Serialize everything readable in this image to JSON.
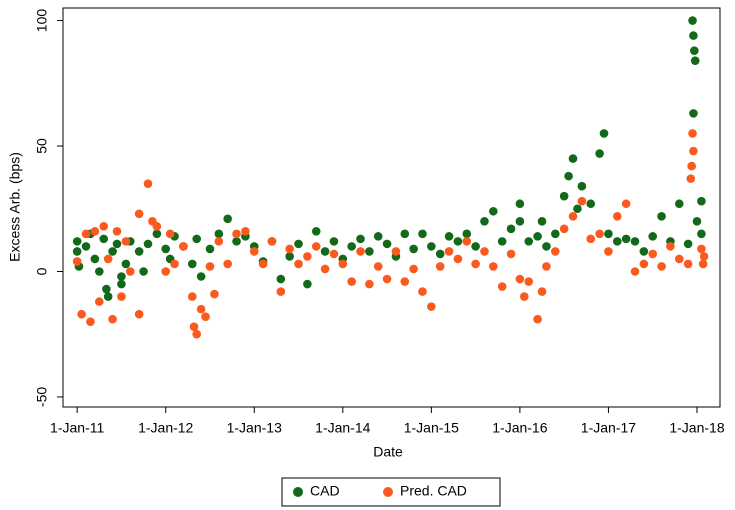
{
  "chart_data": {
    "type": "scatter",
    "x_label": "Date",
    "y_label": "Excess Arb. (bps)",
    "xlim": [
      2010.84,
      2018.26
    ],
    "ylim": [
      -54,
      105
    ],
    "xticks": [
      {
        "value": 2011,
        "label": "1-Jan-11"
      },
      {
        "value": 2012,
        "label": "1-Jan-12"
      },
      {
        "value": 2013,
        "label": "1-Jan-13"
      },
      {
        "value": 2014,
        "label": "1-Jan-14"
      },
      {
        "value": 2015,
        "label": "1-Jan-15"
      },
      {
        "value": 2016,
        "label": "1-Jan-16"
      },
      {
        "value": 2017,
        "label": "1-Jan-17"
      },
      {
        "value": 2018,
        "label": "1-Jan-18"
      }
    ],
    "yticks": [
      -50,
      0,
      50,
      100
    ],
    "legend": "bottom",
    "series": [
      {
        "name": "CAD",
        "color": "#13691a",
        "x": [
          2011.0,
          2011.0,
          2011.02,
          2011.1,
          2011.15,
          2011.2,
          2011.25,
          2011.3,
          2011.33,
          2011.35,
          2011.4,
          2011.45,
          2011.5,
          2011.5,
          2011.55,
          2011.6,
          2011.7,
          2011.75,
          2011.8,
          2011.9,
          2012.0,
          2012.05,
          2012.1,
          2012.2,
          2012.3,
          2012.35,
          2012.4,
          2012.5,
          2012.6,
          2012.7,
          2012.8,
          2012.9,
          2013.0,
          2013.1,
          2013.2,
          2013.3,
          2013.4,
          2013.5,
          2013.6,
          2013.7,
          2013.8,
          2013.9,
          2014.0,
          2014.1,
          2014.2,
          2014.3,
          2014.4,
          2014.5,
          2014.6,
          2014.7,
          2014.8,
          2014.9,
          2015.0,
          2015.1,
          2015.2,
          2015.3,
          2015.4,
          2015.5,
          2015.6,
          2015.7,
          2015.8,
          2015.9,
          2016.0,
          2016.0,
          2016.1,
          2016.2,
          2016.25,
          2016.3,
          2016.4,
          2016.5,
          2016.55,
          2016.6,
          2016.65,
          2016.7,
          2016.8,
          2016.9,
          2016.95,
          2017.0,
          2017.1,
          2017.2,
          2017.3,
          2017.4,
          2017.5,
          2017.6,
          2017.7,
          2017.8,
          2017.9,
          2017.95,
          2017.96,
          2017.97,
          2017.98,
          2017.96,
          2018.0,
          2018.05,
          2018.05
        ],
        "values": [
          12,
          8,
          2,
          10,
          15,
          5,
          0,
          13,
          -7,
          -10,
          8,
          11,
          -2,
          -5,
          3,
          12,
          8,
          0,
          11,
          15,
          9,
          5,
          14,
          10,
          3,
          13,
          -2,
          9,
          15,
          21,
          12,
          14,
          10,
          4,
          12,
          -3,
          6,
          11,
          -5,
          16,
          8,
          12,
          5,
          10,
          13,
          8,
          14,
          11,
          6,
          15,
          9,
          15,
          10,
          7,
          14,
          12,
          15,
          10,
          20,
          24,
          12,
          17,
          27,
          20,
          12,
          14,
          20,
          10,
          15,
          30,
          38,
          45,
          25,
          34,
          27,
          47,
          55,
          15,
          12,
          13,
          12,
          8,
          14,
          22,
          12,
          27,
          11,
          100,
          94,
          88,
          84,
          63,
          20,
          28,
          15
        ]
      },
      {
        "name": "Pred. CAD",
        "color": "#fa5a1e",
        "x": [
          2011.0,
          2011.05,
          2011.1,
          2011.15,
          2011.2,
          2011.25,
          2011.3,
          2011.35,
          2011.4,
          2011.45,
          2011.5,
          2011.55,
          2011.6,
          2011.7,
          2011.7,
          2011.8,
          2011.85,
          2011.9,
          2012.0,
          2012.05,
          2012.1,
          2012.2,
          2012.3,
          2012.32,
          2012.35,
          2012.4,
          2012.45,
          2012.5,
          2012.55,
          2012.6,
          2012.7,
          2012.8,
          2012.9,
          2013.0,
          2013.1,
          2013.2,
          2013.3,
          2013.4,
          2013.5,
          2013.6,
          2013.7,
          2013.8,
          2013.9,
          2014.0,
          2014.1,
          2014.2,
          2014.3,
          2014.4,
          2014.5,
          2014.6,
          2014.7,
          2014.8,
          2014.9,
          2015.0,
          2015.1,
          2015.2,
          2015.3,
          2015.4,
          2015.5,
          2015.6,
          2015.7,
          2015.8,
          2015.9,
          2016.0,
          2016.05,
          2016.1,
          2016.2,
          2016.25,
          2016.3,
          2016.4,
          2016.5,
          2016.6,
          2016.7,
          2016.8,
          2016.9,
          2017.0,
          2017.1,
          2017.2,
          2017.3,
          2017.4,
          2017.5,
          2017.6,
          2017.7,
          2017.8,
          2017.9,
          2017.95,
          2017.96,
          2017.94,
          2017.93,
          2018.05,
          2018.07,
          2018.08
        ],
        "values": [
          4,
          -17,
          15,
          -20,
          16,
          -12,
          18,
          5,
          -19,
          16,
          -10,
          12,
          0,
          -17,
          23,
          35,
          20,
          18,
          0,
          15,
          3,
          10,
          -10,
          -22,
          -25,
          -15,
          -18,
          2,
          -9,
          12,
          3,
          15,
          16,
          8,
          3,
          12,
          -8,
          9,
          3,
          6,
          10,
          1,
          7,
          3,
          -4,
          8,
          -5,
          2,
          -3,
          8,
          -4,
          1,
          -8,
          -14,
          2,
          8,
          5,
          12,
          3,
          8,
          2,
          -6,
          7,
          -3,
          -10,
          -4,
          -19,
          -8,
          2,
          8,
          17,
          22,
          28,
          13,
          15,
          8,
          22,
          27,
          0,
          3,
          7,
          2,
          10,
          5,
          3,
          55,
          48,
          42,
          37,
          9,
          3,
          6
        ]
      }
    ]
  }
}
